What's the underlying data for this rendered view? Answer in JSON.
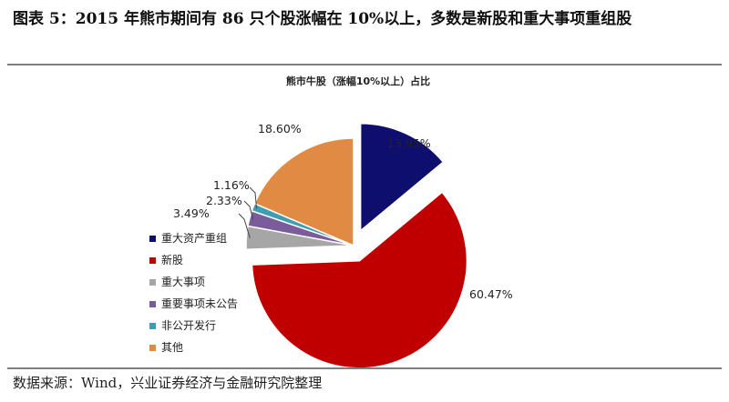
{
  "figure": {
    "title": "图表 5：2015 年熊市期间有 86 只个股涨幅在 10%以上，多数是新股和重大事项重组股",
    "source": "数据来源：Wind，兴业证券经济与金融研究院整理"
  },
  "chart_data": {
    "type": "pie",
    "title": "熊市牛股（涨幅10%以上）占比",
    "start_angle_deg": 0,
    "direction": "clockwise",
    "exploded": true,
    "legend_position": "left",
    "slices": [
      {
        "label": "重大资产重组",
        "value": 13.95,
        "display": "13.95%",
        "color": "#0e0e6e"
      },
      {
        "label": "新股",
        "value": 60.47,
        "display": "60.47%",
        "color": "#c00000"
      },
      {
        "label": "重大事项",
        "value": 3.49,
        "display": "3.49%",
        "color": "#a6a6a6"
      },
      {
        "label": "重要事项未公告",
        "value": 2.33,
        "display": "2.33%",
        "color": "#7a5c9a"
      },
      {
        "label": "非公开发行",
        "value": 1.16,
        "display": "1.16%",
        "color": "#3e9db3"
      },
      {
        "label": "其他",
        "value": 18.6,
        "display": "18.60%",
        "color": "#e08a44"
      }
    ]
  }
}
